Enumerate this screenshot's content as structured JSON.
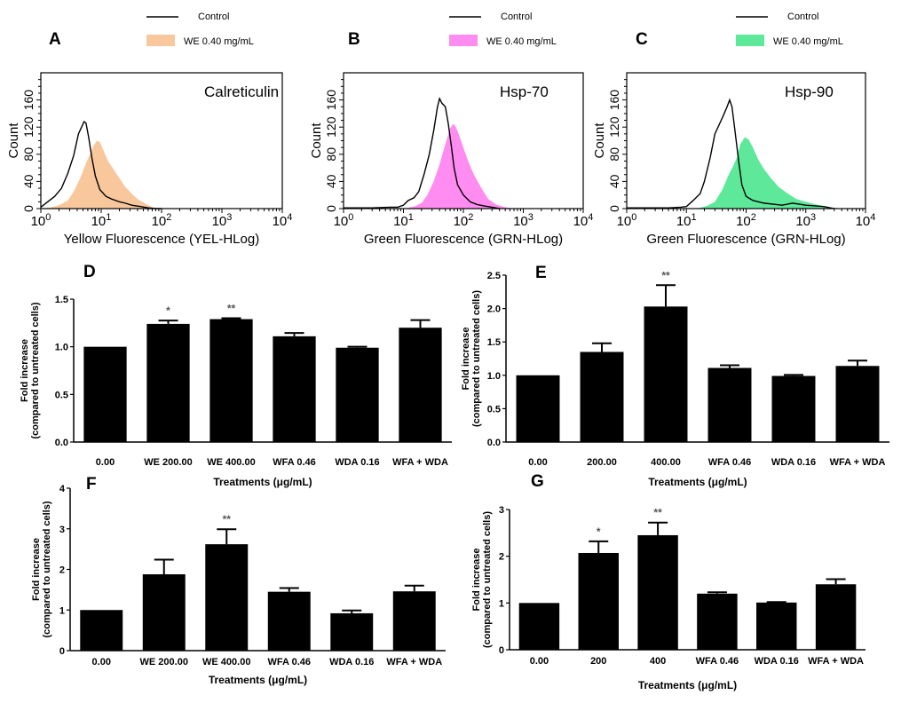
{
  "chart_data": [
    {
      "panel": "A",
      "type": "area",
      "title": "Calreticulin",
      "xlabel": "Yellow Fluorescence (YEL-HLog)",
      "ylabel": "Count",
      "xscale": "log",
      "xlim": [
        1,
        10000
      ],
      "ylim": [
        0,
        200
      ],
      "x_ticks": [
        "10^0",
        "10^1",
        "10^2",
        "10^3",
        "10^4"
      ],
      "y_ticks": [
        "0",
        "40",
        "80",
        "120",
        "160"
      ],
      "legend": [
        {
          "label": "Control",
          "style": "line",
          "color": "#000000"
        },
        {
          "label": "WE 0.40 mg/mL",
          "style": "fill",
          "color": "#f8c89c"
        }
      ],
      "series": [
        {
          "name": "Control",
          "x": [
            1,
            1.3,
            1.7,
            2.2,
            2.8,
            3.5,
            4.2,
            5.2,
            5.6,
            6.2,
            7,
            8,
            9.5,
            12,
            15,
            20,
            25,
            32,
            45,
            60,
            80,
            100
          ],
          "y": [
            2,
            10,
            18,
            30,
            52,
            78,
            110,
            128,
            126,
            105,
            75,
            48,
            28,
            18,
            14,
            10,
            8,
            5,
            3,
            1,
            0,
            0
          ]
        },
        {
          "name": "WE 0.40 mg/mL",
          "x": [
            1,
            1.5,
            2,
            2.8,
            3.5,
            4.5,
            5.5,
            6.5,
            7.5,
            8.5,
            9.5,
            11,
            13,
            16,
            20,
            25,
            32,
            40,
            55,
            70,
            90
          ],
          "y": [
            0,
            2,
            5,
            12,
            25,
            45,
            65,
            80,
            93,
            100,
            98,
            85,
            70,
            58,
            45,
            32,
            22,
            14,
            7,
            2,
            0
          ]
        }
      ]
    },
    {
      "panel": "B",
      "type": "area",
      "title": "Hsp-70",
      "xlabel": "Green Fluorescence (GRN-HLog)",
      "ylabel": "Count",
      "xscale": "log",
      "xlim": [
        1,
        10000
      ],
      "ylim": [
        0,
        200
      ],
      "x_ticks": [
        "10^0",
        "10^1",
        "10^2",
        "10^3",
        "10^4"
      ],
      "y_ticks": [
        "0",
        "40",
        "80",
        "120",
        "160"
      ],
      "legend": [
        {
          "label": "Control",
          "style": "line",
          "color": "#000000"
        },
        {
          "label": "WE 0.40 mg/mL",
          "style": "fill",
          "color": "#ff8cf0"
        }
      ],
      "series": [
        {
          "name": "Control",
          "x": [
            1,
            3,
            6,
            8,
            10,
            12,
            15,
            18,
            22,
            27,
            32,
            37,
            40,
            44,
            50,
            56,
            63,
            70,
            80,
            100,
            130,
            170,
            220,
            300,
            400
          ],
          "y": [
            1,
            1,
            2,
            2,
            5,
            12,
            16,
            25,
            50,
            80,
            115,
            150,
            162,
            155,
            150,
            125,
            92,
            60,
            35,
            20,
            10,
            6,
            4,
            2,
            0
          ]
        },
        {
          "name": "WE 0.40 mg/mL",
          "x": [
            10,
            15,
            20,
            25,
            32,
            40,
            50,
            60,
            68,
            75,
            85,
            100,
            120,
            150,
            200,
            260,
            350,
            500,
            700
          ],
          "y": [
            0,
            3,
            8,
            20,
            40,
            65,
            95,
            118,
            125,
            120,
            108,
            90,
            70,
            50,
            30,
            14,
            6,
            2,
            0
          ]
        }
      ]
    },
    {
      "panel": "C",
      "type": "area",
      "title": "Hsp-90",
      "xlabel": "Green Fluorescence (GRN-HLog)",
      "ylabel": "Count",
      "xscale": "log",
      "xlim": [
        1,
        10000
      ],
      "ylim": [
        0,
        200
      ],
      "x_ticks": [
        "10^0",
        "10^1",
        "10^2",
        "10^3",
        "10^4"
      ],
      "y_ticks": [
        "0",
        "40",
        "80",
        "120",
        "160"
      ],
      "legend": [
        {
          "label": "Control",
          "style": "line",
          "color": "#000000"
        },
        {
          "label": "WE 0.40 mg/mL",
          "style": "fill",
          "color": "#5ee89a"
        }
      ],
      "series": [
        {
          "name": "Control",
          "x": [
            1,
            5,
            8,
            10,
            13,
            17,
            20,
            25,
            30,
            36,
            42,
            48,
            53,
            58,
            65,
            75,
            85,
            100,
            130,
            200,
            400,
            600,
            1000,
            2000,
            3000
          ],
          "y": [
            1,
            1,
            2,
            3,
            12,
            22,
            40,
            75,
            110,
            125,
            138,
            150,
            160,
            150,
            115,
            70,
            35,
            18,
            12,
            8,
            5,
            8,
            5,
            3,
            0
          ]
        },
        {
          "name": "WE 0.40 mg/mL",
          "x": [
            15,
            22,
            30,
            40,
            50,
            60,
            70,
            80,
            95,
            110,
            130,
            160,
            200,
            260,
            350,
            500,
            700,
            1000,
            1500,
            2500,
            4000
          ],
          "y": [
            0,
            4,
            10,
            28,
            48,
            62,
            75,
            95,
            105,
            102,
            90,
            72,
            58,
            45,
            32,
            22,
            14,
            10,
            6,
            2,
            0
          ]
        }
      ]
    },
    {
      "panel": "D",
      "type": "bar",
      "categories": [
        "0.00",
        "WE 200.00",
        "WE 400.00",
        "WFA 0.46",
        "WDA 0.16",
        "WFA + WDA"
      ],
      "values": [
        1.0,
        1.24,
        1.29,
        1.11,
        0.99,
        1.2
      ],
      "errors": [
        0.0,
        0.035,
        0.01,
        0.035,
        0.01,
        0.08
      ],
      "significance": [
        "",
        "*",
        "**",
        "",
        "",
        ""
      ],
      "xlabel": "Treatments (μg/mL)",
      "ylabel_line1": "Fold increase",
      "ylabel_line2": "(compared to untreated cells)",
      "ylim": [
        0,
        1.5
      ],
      "y_ticks": [
        "0.0",
        "0.5",
        "1.0",
        "1.5"
      ],
      "y_tick_values": [
        0,
        0.5,
        1.0,
        1.5
      ]
    },
    {
      "panel": "E",
      "type": "bar",
      "categories": [
        "0.00",
        "200.00",
        "400.00",
        "WFA 0.46",
        "WDA 0.16",
        "WFA + WDA"
      ],
      "values": [
        1.0,
        1.35,
        2.03,
        1.11,
        0.99,
        1.14
      ],
      "errors": [
        0.0,
        0.13,
        0.32,
        0.04,
        0.015,
        0.08
      ],
      "significance": [
        "",
        "",
        "**",
        "",
        "",
        ""
      ],
      "xlabel": "Treatments (μg/mL)",
      "ylabel_line1": "Fold increase",
      "ylabel_line2": "(compared to untreated cells)",
      "ylim": [
        0,
        2.5
      ],
      "y_ticks": [
        "0.0",
        "0.5",
        "1.0",
        "1.5",
        "2.0",
        "2.5"
      ],
      "y_tick_values": [
        0,
        0.5,
        1.0,
        1.5,
        2.0,
        2.5
      ]
    },
    {
      "panel": "F",
      "type": "bar",
      "categories": [
        "0.00",
        "WE 200.00",
        "WE 400.00",
        "WFA 0.46",
        "WDA 0.16",
        "WFA + WDA"
      ],
      "values": [
        1.0,
        1.88,
        2.62,
        1.45,
        0.92,
        1.46
      ],
      "errors": [
        0.0,
        0.36,
        0.37,
        0.09,
        0.07,
        0.14
      ],
      "significance": [
        "",
        "",
        "**",
        "",
        "",
        ""
      ],
      "xlabel": "Treatments (μg/mL)",
      "ylabel_line1": "Fold increase",
      "ylabel_line2": "(compared to untreated cells)",
      "ylim": [
        0,
        4
      ],
      "y_ticks": [
        "0",
        "1",
        "2",
        "3",
        "4"
      ],
      "y_tick_values": [
        0,
        1,
        2,
        3,
        4
      ]
    },
    {
      "panel": "G",
      "type": "bar",
      "categories": [
        "0.00",
        "200",
        "400",
        "WFA 0.46",
        "WDA 0.16",
        "WFA + WDA"
      ],
      "values": [
        1.0,
        2.07,
        2.45,
        1.2,
        1.01,
        1.4
      ],
      "errors": [
        0.0,
        0.25,
        0.27,
        0.03,
        0.01,
        0.11
      ],
      "significance": [
        "",
        "*",
        "**",
        "",
        "",
        ""
      ],
      "xlabel": "Treatments (μg/mL)",
      "ylabel_line1": "Fold increase",
      "ylabel_line2": "(compared to untreated cells)",
      "ylim": [
        0,
        3
      ],
      "y_ticks": [
        "0",
        "1",
        "2",
        "3"
      ],
      "y_tick_values": [
        0,
        1,
        2,
        3
      ]
    }
  ],
  "panel_labels": [
    "A",
    "B",
    "C",
    "D",
    "E",
    "F",
    "G"
  ]
}
